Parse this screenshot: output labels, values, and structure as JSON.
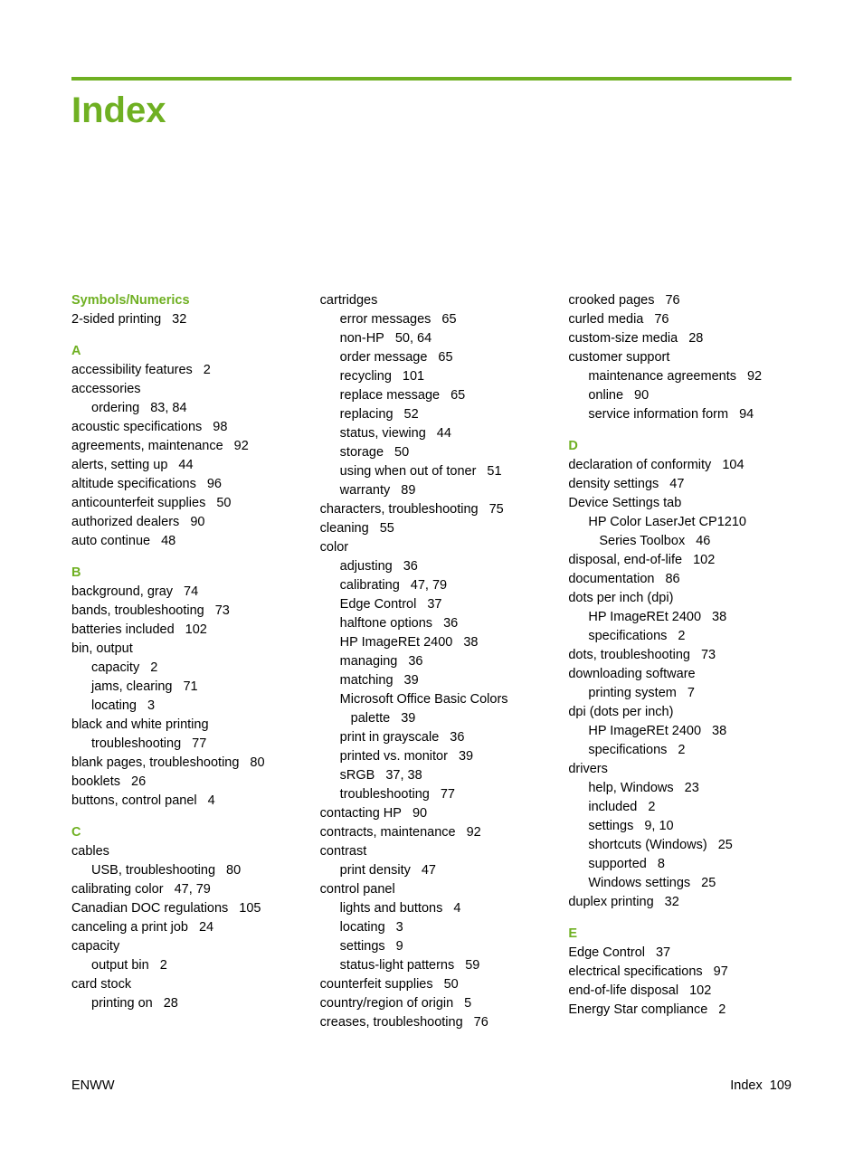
{
  "title": "Index",
  "accent_color": "#6fb022",
  "footer": {
    "left": "ENWW",
    "right_label": "Index",
    "right_page": "109"
  },
  "columns": [
    {
      "blocks": [
        {
          "type": "head",
          "text": "Symbols/Numerics"
        },
        {
          "type": "entry",
          "text": "2-sided printing",
          "pages": "32"
        },
        {
          "type": "head",
          "text": "A"
        },
        {
          "type": "entry",
          "text": "accessibility features",
          "pages": "2"
        },
        {
          "type": "entry",
          "text": "accessories"
        },
        {
          "type": "sub",
          "text": "ordering",
          "pages": "83,  84"
        },
        {
          "type": "entry",
          "text": "acoustic specifications",
          "pages": "98"
        },
        {
          "type": "entry",
          "text": "agreements, maintenance",
          "pages": "92"
        },
        {
          "type": "entry",
          "text": "alerts, setting up",
          "pages": "44"
        },
        {
          "type": "entry",
          "text": "altitude specifications",
          "pages": "96"
        },
        {
          "type": "entry",
          "text": "anticounterfeit supplies",
          "pages": "50"
        },
        {
          "type": "entry",
          "text": "authorized dealers",
          "pages": "90"
        },
        {
          "type": "entry",
          "text": "auto continue",
          "pages": "48"
        },
        {
          "type": "head",
          "text": "B"
        },
        {
          "type": "entry",
          "text": "background, gray",
          "pages": "74"
        },
        {
          "type": "entry",
          "text": "bands, troubleshooting",
          "pages": "73"
        },
        {
          "type": "entry",
          "text": "batteries included",
          "pages": "102"
        },
        {
          "type": "entry",
          "text": "bin, output"
        },
        {
          "type": "sub",
          "text": "capacity",
          "pages": "2"
        },
        {
          "type": "sub",
          "text": "jams, clearing",
          "pages": "71"
        },
        {
          "type": "sub",
          "text": "locating",
          "pages": "3"
        },
        {
          "type": "entry",
          "text": "black and white printing"
        },
        {
          "type": "sub",
          "text": "troubleshooting",
          "pages": "77"
        },
        {
          "type": "entry",
          "text": "blank pages, troubleshooting",
          "pages": "80"
        },
        {
          "type": "entry",
          "text": "booklets",
          "pages": "26"
        },
        {
          "type": "entry",
          "text": "buttons, control panel",
          "pages": "4"
        },
        {
          "type": "head",
          "text": "C"
        },
        {
          "type": "entry",
          "text": "cables"
        },
        {
          "type": "sub",
          "text": "USB, troubleshooting",
          "pages": "80"
        },
        {
          "type": "entry",
          "text": "calibrating color",
          "pages": "47,  79"
        },
        {
          "type": "entry",
          "text": "Canadian DOC regulations",
          "pages": "105"
        },
        {
          "type": "entry",
          "text": "canceling a print job",
          "pages": "24"
        },
        {
          "type": "entry",
          "text": "capacity"
        },
        {
          "type": "sub",
          "text": "output bin",
          "pages": "2"
        },
        {
          "type": "entry",
          "text": "card stock"
        },
        {
          "type": "sub",
          "text": "printing on",
          "pages": "28"
        }
      ]
    },
    {
      "blocks": [
        {
          "type": "entry",
          "text": "cartridges"
        },
        {
          "type": "sub",
          "text": "error messages",
          "pages": "65"
        },
        {
          "type": "sub",
          "text": "non-HP",
          "pages": "50,  64"
        },
        {
          "type": "sub",
          "text": "order message",
          "pages": "65"
        },
        {
          "type": "sub",
          "text": "recycling",
          "pages": "101"
        },
        {
          "type": "sub",
          "text": "replace message",
          "pages": "65"
        },
        {
          "type": "sub",
          "text": "replacing",
          "pages": "52"
        },
        {
          "type": "sub",
          "text": "status, viewing",
          "pages": "44"
        },
        {
          "type": "sub",
          "text": "storage",
          "pages": "50"
        },
        {
          "type": "sub",
          "text": "using when out of toner",
          "pages": "51"
        },
        {
          "type": "sub",
          "text": "warranty",
          "pages": "89"
        },
        {
          "type": "entry",
          "text": "characters, troubleshooting",
          "pages": "75"
        },
        {
          "type": "entry",
          "text": "cleaning",
          "pages": "55"
        },
        {
          "type": "entry",
          "text": "color"
        },
        {
          "type": "sub",
          "text": "adjusting",
          "pages": "36"
        },
        {
          "type": "sub",
          "text": "calibrating",
          "pages": "47,  79"
        },
        {
          "type": "sub",
          "text": "Edge Control",
          "pages": "37"
        },
        {
          "type": "sub",
          "text": "halftone options",
          "pages": "36"
        },
        {
          "type": "sub",
          "text": "HP ImageREt 2400",
          "pages": "38"
        },
        {
          "type": "sub",
          "text": "managing",
          "pages": "36"
        },
        {
          "type": "sub",
          "text": "matching",
          "pages": "39"
        },
        {
          "type": "sub",
          "text": "Microsoft Office Basic Colors"
        },
        {
          "type": "sub2",
          "text": "palette",
          "pages": "39"
        },
        {
          "type": "sub",
          "text": "print in grayscale",
          "pages": "36"
        },
        {
          "type": "sub",
          "text": "printed vs. monitor",
          "pages": "39"
        },
        {
          "type": "sub",
          "text": "sRGB",
          "pages": "37,  38"
        },
        {
          "type": "sub",
          "text": "troubleshooting",
          "pages": "77"
        },
        {
          "type": "entry",
          "text": "contacting HP",
          "pages": "90"
        },
        {
          "type": "entry",
          "text": "contracts, maintenance",
          "pages": "92"
        },
        {
          "type": "entry",
          "text": "contrast"
        },
        {
          "type": "sub",
          "text": "print density",
          "pages": "47"
        },
        {
          "type": "entry",
          "text": "control panel"
        },
        {
          "type": "sub",
          "text": "lights and buttons",
          "pages": "4"
        },
        {
          "type": "sub",
          "text": "locating",
          "pages": "3"
        },
        {
          "type": "sub",
          "text": "settings",
          "pages": "9"
        },
        {
          "type": "sub",
          "text": "status-light patterns",
          "pages": "59"
        },
        {
          "type": "entry",
          "text": "counterfeit supplies",
          "pages": "50"
        },
        {
          "type": "entry",
          "text": "country/region of origin",
          "pages": "5"
        },
        {
          "type": "entry",
          "text": "creases, troubleshooting",
          "pages": "76"
        }
      ]
    },
    {
      "blocks": [
        {
          "type": "entry",
          "text": "crooked pages",
          "pages": "76"
        },
        {
          "type": "entry",
          "text": "curled media",
          "pages": "76"
        },
        {
          "type": "entry",
          "text": "custom-size media",
          "pages": "28"
        },
        {
          "type": "entry",
          "text": "customer support"
        },
        {
          "type": "sub",
          "text": "maintenance agreements",
          "pages": "92"
        },
        {
          "type": "sub",
          "text": "online",
          "pages": "90"
        },
        {
          "type": "sub",
          "text": "service information form",
          "pages": "94"
        },
        {
          "type": "head",
          "text": "D"
        },
        {
          "type": "entry",
          "text": "declaration of conformity",
          "pages": "104"
        },
        {
          "type": "entry",
          "text": "density settings",
          "pages": "47"
        },
        {
          "type": "entry",
          "text": "Device Settings tab"
        },
        {
          "type": "sub",
          "text": "HP Color LaserJet CP1210"
        },
        {
          "type": "sub2",
          "text": "Series Toolbox",
          "pages": "46"
        },
        {
          "type": "entry",
          "text": "disposal, end-of-life",
          "pages": "102"
        },
        {
          "type": "entry",
          "text": "documentation",
          "pages": "86"
        },
        {
          "type": "entry",
          "text": "dots per inch (dpi)"
        },
        {
          "type": "sub",
          "text": "HP ImageREt 2400",
          "pages": "38"
        },
        {
          "type": "sub",
          "text": "specifications",
          "pages": "2"
        },
        {
          "type": "entry",
          "text": "dots, troubleshooting",
          "pages": "73"
        },
        {
          "type": "entry",
          "text": "downloading software"
        },
        {
          "type": "sub",
          "text": "printing system",
          "pages": "7"
        },
        {
          "type": "entry",
          "text": "dpi (dots per inch)"
        },
        {
          "type": "sub",
          "text": "HP ImageREt 2400",
          "pages": "38"
        },
        {
          "type": "sub",
          "text": "specifications",
          "pages": "2"
        },
        {
          "type": "entry",
          "text": "drivers"
        },
        {
          "type": "sub",
          "text": "help, Windows",
          "pages": "23"
        },
        {
          "type": "sub",
          "text": "included",
          "pages": "2"
        },
        {
          "type": "sub",
          "text": "settings",
          "pages": "9,  10"
        },
        {
          "type": "sub",
          "text": "shortcuts (Windows)",
          "pages": "25"
        },
        {
          "type": "sub",
          "text": "supported",
          "pages": "8"
        },
        {
          "type": "sub",
          "text": "Windows settings",
          "pages": "25"
        },
        {
          "type": "entry",
          "text": "duplex printing",
          "pages": "32"
        },
        {
          "type": "head",
          "text": "E"
        },
        {
          "type": "entry",
          "text": "Edge Control",
          "pages": "37"
        },
        {
          "type": "entry",
          "text": "electrical specifications",
          "pages": "97"
        },
        {
          "type": "entry",
          "text": "end-of-life disposal",
          "pages": "102"
        },
        {
          "type": "entry",
          "text": "Energy Star compliance",
          "pages": "2"
        }
      ]
    }
  ]
}
